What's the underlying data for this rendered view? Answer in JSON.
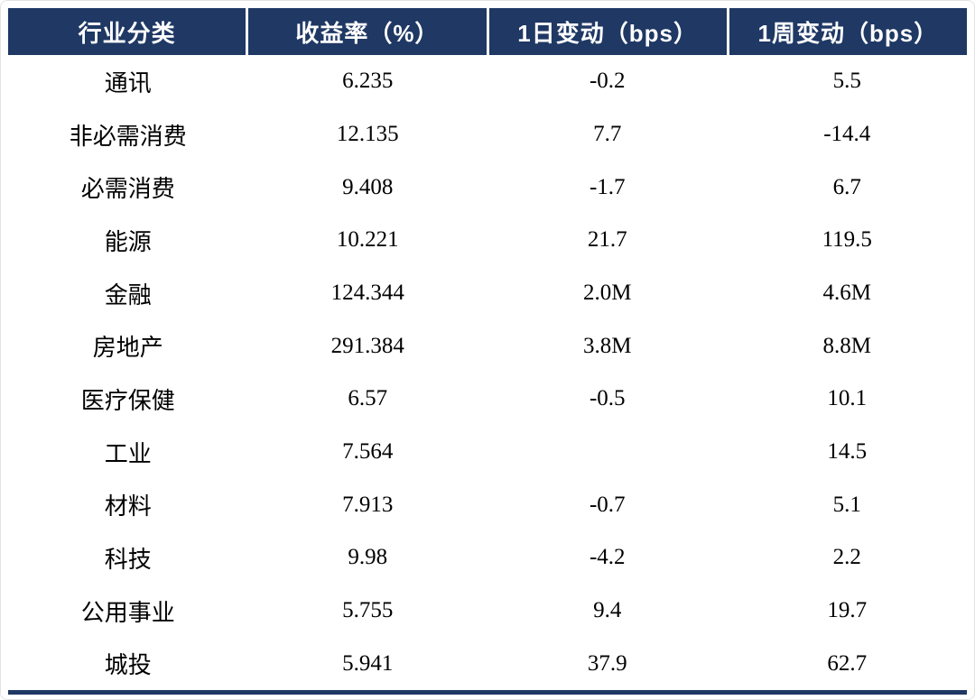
{
  "chart_data": {
    "type": "table",
    "title": "",
    "columns": [
      "行业分类",
      "收益率（%）",
      "1日变动（bps）",
      "1周变动（bps）"
    ],
    "rows": [
      [
        "通讯",
        "6.235",
        "-0.2",
        "5.5"
      ],
      [
        "非必需消费",
        "12.135",
        "7.7",
        "-14.4"
      ],
      [
        "必需消费",
        "9.408",
        "-1.7",
        "6.7"
      ],
      [
        "能源",
        "10.221",
        "21.7",
        "119.5"
      ],
      [
        "金融",
        "124.344",
        "2.0M",
        "4.6M"
      ],
      [
        "房地产",
        "291.384",
        "3.8M",
        "8.8M"
      ],
      [
        "医疗保健",
        "6.57",
        "-0.5",
        "10.1"
      ],
      [
        "工业",
        "7.564",
        "",
        "14.5"
      ],
      [
        "材料",
        "7.913",
        "-0.7",
        "5.1"
      ],
      [
        "科技",
        "9.98",
        "-4.2",
        "2.2"
      ],
      [
        "公用事业",
        "5.755",
        "9.4",
        "19.7"
      ],
      [
        "城投",
        "5.941",
        "37.9",
        "62.7"
      ]
    ],
    "layout": {
      "header_background": "#1f3864",
      "header_text_color": "#ffffff",
      "body_text_color": "#000000",
      "grid": "none",
      "bottom_rule_color": "#1f3864"
    }
  }
}
